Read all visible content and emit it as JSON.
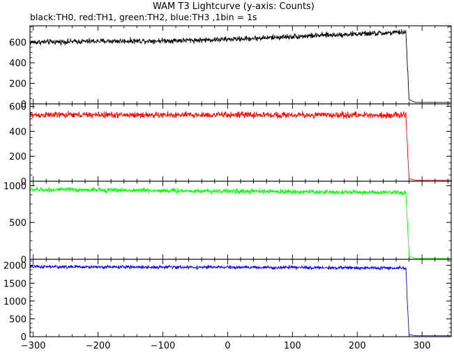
{
  "chart_data": {
    "type": "line",
    "title": "WAM T3 Lightcurve (y-axis: Counts)",
    "subtitle": "black:TH0, red:TH1, green:TH2, blue:TH3 ,1bin = 1s",
    "xlim": [
      -305,
      345
    ],
    "x_ticks": [
      -300,
      -200,
      -100,
      0,
      100,
      200,
      300
    ],
    "x_tick_labels": [
      "−300",
      "−200",
      "−100",
      "0",
      "100",
      "200",
      "300"
    ],
    "grid": false,
    "legend": "none",
    "series": [
      {
        "color": "#000000",
        "ylim": [
          0,
          760
        ],
        "y_ticks": [
          0,
          200,
          400,
          600
        ],
        "points": [
          [
            -305,
            600
          ],
          [
            -250,
            605
          ],
          [
            -200,
            610
          ],
          [
            -150,
            612
          ],
          [
            -100,
            615
          ],
          [
            -50,
            620
          ],
          [
            0,
            628
          ],
          [
            50,
            640
          ],
          [
            100,
            655
          ],
          [
            150,
            668
          ],
          [
            200,
            680
          ],
          [
            250,
            690
          ],
          [
            275,
            700
          ],
          [
            278,
            300
          ],
          [
            280,
            40
          ],
          [
            290,
            14
          ],
          [
            345,
            14
          ]
        ],
        "noise": 26
      },
      {
        "color": "#ff0000",
        "ylim": [
          0,
          620
        ],
        "y_ticks": [
          0,
          200,
          400,
          600
        ],
        "points": [
          [
            -305,
            530
          ],
          [
            -200,
            532
          ],
          [
            -100,
            530
          ],
          [
            0,
            532
          ],
          [
            100,
            530
          ],
          [
            200,
            530
          ],
          [
            275,
            530
          ],
          [
            278,
            220
          ],
          [
            280,
            20
          ],
          [
            290,
            8
          ],
          [
            345,
            8
          ]
        ],
        "noise": 25
      },
      {
        "color": "#00ff00",
        "ylim": [
          0,
          1060
        ],
        "y_ticks": [
          0,
          500,
          1000
        ],
        "points": [
          [
            -305,
            945
          ],
          [
            -200,
            940
          ],
          [
            -100,
            932
          ],
          [
            0,
            925
          ],
          [
            100,
            918
          ],
          [
            200,
            910
          ],
          [
            275,
            900
          ],
          [
            278,
            380
          ],
          [
            280,
            40
          ],
          [
            290,
            12
          ],
          [
            345,
            12
          ]
        ],
        "noise": 32
      },
      {
        "color": "#0000ff",
        "ylim": [
          0,
          2170
        ],
        "y_ticks": [
          0,
          500,
          1000,
          1500,
          2000
        ],
        "points": [
          [
            -305,
            1960
          ],
          [
            -200,
            1955
          ],
          [
            -100,
            1950
          ],
          [
            0,
            1945
          ],
          [
            100,
            1940
          ],
          [
            200,
            1930
          ],
          [
            275,
            1920
          ],
          [
            278,
            720
          ],
          [
            280,
            60
          ],
          [
            290,
            25
          ],
          [
            345,
            25
          ]
        ],
        "noise": 45
      }
    ]
  }
}
